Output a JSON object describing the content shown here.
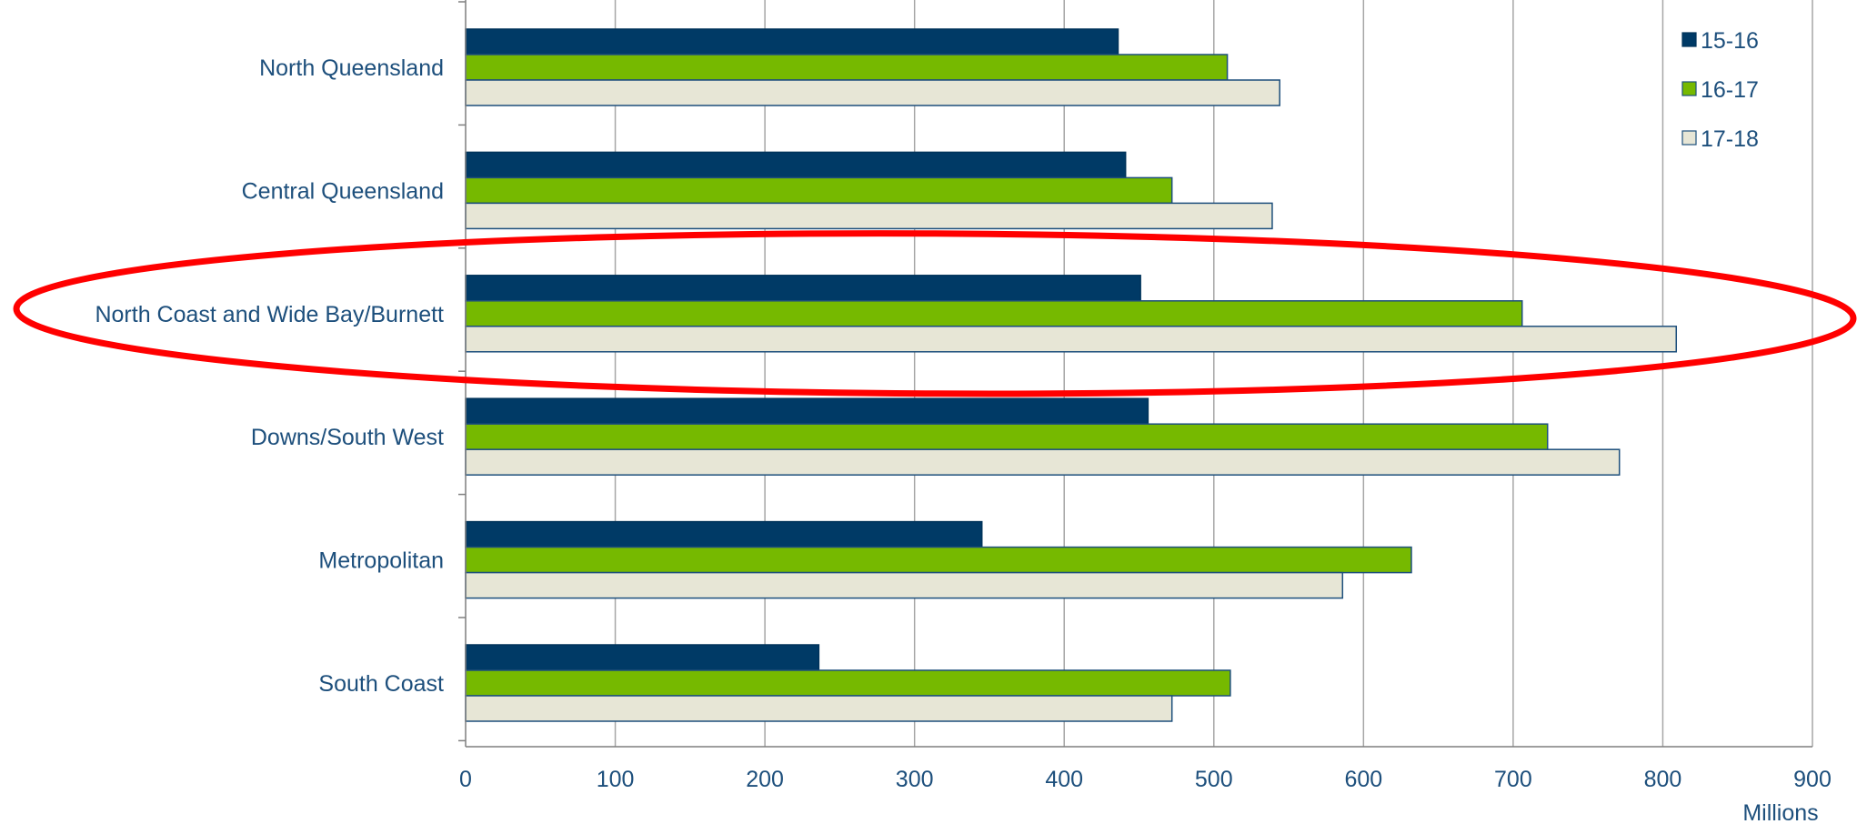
{
  "chart_data": {
    "type": "bar",
    "orientation": "horizontal",
    "categories": [
      "North Queensland",
      "Central Queensland",
      "North Coast and Wide Bay/Burnett",
      "Downs/South West",
      "Metropolitan",
      "South Coast"
    ],
    "series": [
      {
        "name": "15-16",
        "values": [
          436,
          441,
          451,
          456,
          345,
          236
        ],
        "color": "#003a66",
        "stroke": "#00335a"
      },
      {
        "name": "16-17",
        "values": [
          509,
          472,
          706,
          723,
          632,
          511
        ],
        "color": "#76b900",
        "stroke": "#1d4f7c"
      },
      {
        "name": "17-18",
        "values": [
          544,
          539,
          809,
          771,
          586,
          472
        ],
        "color": "#e7e6d6",
        "stroke": "#1d4f7c"
      }
    ],
    "xticks": [
      "0",
      "100",
      "200",
      "300",
      "400",
      "500",
      "600",
      "700",
      "800",
      "900"
    ],
    "xlim": [
      0,
      900
    ],
    "xunit": "Millions",
    "grid": true,
    "legend_position": "top-right",
    "highlight": {
      "category": "North Coast and Wide Bay/Burnett",
      "shape": "ellipse",
      "color": "#ff0000"
    }
  }
}
